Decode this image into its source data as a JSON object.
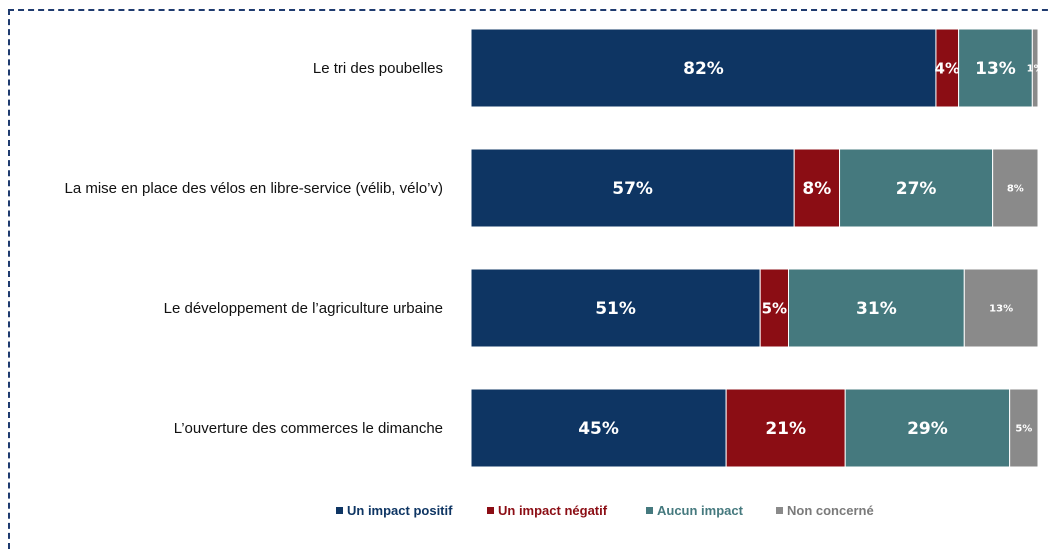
{
  "chart_data": {
    "type": "bar",
    "orientation": "horizontal",
    "stacked": true,
    "categories": [
      "Le tri des poubelles",
      "La mise en place des vélos en libre-service (vélib, vélo’v)",
      "Le développement de l’agriculture urbaine",
      "L’ouverture des commerces le dimanche"
    ],
    "series": [
      {
        "name": "Un impact positif",
        "color": "#0e3563",
        "values": [
          82,
          57,
          51,
          45
        ]
      },
      {
        "name": "Un impact négatif",
        "color": "#8b0d14",
        "values": [
          4,
          8,
          5,
          21
        ]
      },
      {
        "name": "Aucun impact",
        "color": "#45797e",
        "values": [
          13,
          27,
          31,
          29
        ]
      },
      {
        "name": "Non concerné",
        "color": "#8a8a8a",
        "values": [
          1,
          8,
          13,
          5
        ]
      }
    ],
    "value_suffix": "%",
    "xlim": [
      0,
      100
    ],
    "grid": false,
    "legend_position": "bottom"
  }
}
